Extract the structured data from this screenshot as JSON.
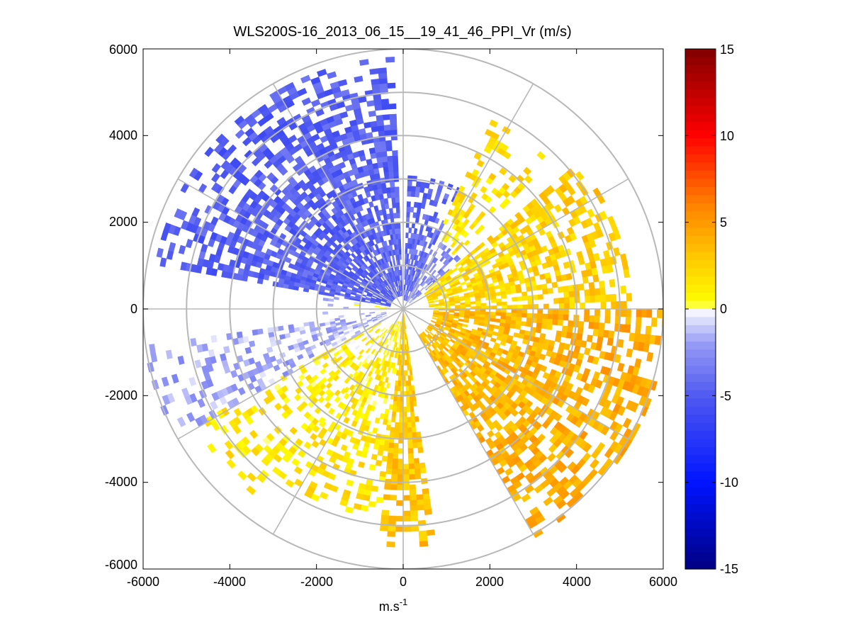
{
  "chart_data": {
    "type": "heatmap",
    "subtype": "polar-ppi",
    "title": "WLS200S-16_2013_06_15__19_41_46_PPI_Vr (m/s)",
    "xlabel": "m.s",
    "xlabel_superscript": "-1",
    "ylabel": "",
    "xlim": [
      -6000,
      6000
    ],
    "ylim": [
      -6000,
      6000
    ],
    "xticks": [
      "-6000",
      "-4000",
      "-2000",
      "0",
      "2000",
      "4000",
      "6000"
    ],
    "yticks": [
      "6000",
      "4000",
      "2000",
      "0",
      "-2000",
      "-4000",
      "-6000"
    ],
    "grid": {
      "range_rings_m": [
        1000,
        2000,
        3000,
        4000,
        5000,
        6000
      ],
      "spoke_step_deg": 30
    },
    "colorbar": {
      "range": [
        -15,
        15
      ],
      "ticks": [
        "15",
        "10",
        "5",
        "0",
        "-5",
        "-10",
        "-15"
      ],
      "colormap": "blue-white-yellow-red"
    },
    "sectors": [
      {
        "az_from_deg": 280,
        "az_to_deg": 358,
        "r_min_m": 300,
        "r_max_m": 5800,
        "velocity_ms": -4.5,
        "density": 0.85
      },
      {
        "az_from_deg": 2,
        "az_to_deg": 25,
        "r_min_m": 200,
        "r_max_m": 3000,
        "velocity_ms": -4.0,
        "density": 0.8
      },
      {
        "az_from_deg": 25,
        "az_to_deg": 50,
        "r_min_m": 200,
        "r_max_m": 1700,
        "velocity_ms": -2.5,
        "density": 0.6
      },
      {
        "az_from_deg": 25,
        "az_to_deg": 45,
        "r_min_m": 1700,
        "r_max_m": 4800,
        "velocity_ms": 1.5,
        "density": 0.35
      },
      {
        "az_from_deg": 50,
        "az_to_deg": 90,
        "r_min_m": 600,
        "r_max_m": 5200,
        "velocity_ms": 2.0,
        "density": 0.75
      },
      {
        "az_from_deg": 90,
        "az_to_deg": 150,
        "r_min_m": 700,
        "r_max_m": 6000,
        "velocity_ms": 3.5,
        "density": 0.8
      },
      {
        "az_from_deg": 172,
        "az_to_deg": 186,
        "r_min_m": 100,
        "r_max_m": 5400,
        "velocity_ms": 2.5,
        "density": 0.9
      },
      {
        "az_from_deg": 186,
        "az_to_deg": 215,
        "r_min_m": 300,
        "r_max_m": 4800,
        "velocity_ms": 1.0,
        "density": 0.55
      },
      {
        "az_from_deg": 215,
        "az_to_deg": 240,
        "r_min_m": 600,
        "r_max_m": 5500,
        "velocity_ms": 0.8,
        "density": 0.45
      },
      {
        "az_from_deg": 240,
        "az_to_deg": 262,
        "r_min_m": 400,
        "r_max_m": 6000,
        "velocity_ms": -1.5,
        "density": 0.45
      },
      {
        "az_from_deg": 262,
        "az_to_deg": 280,
        "r_min_m": 300,
        "r_max_m": 2000,
        "velocity_ms": -0.5,
        "density": 0.25
      }
    ]
  }
}
